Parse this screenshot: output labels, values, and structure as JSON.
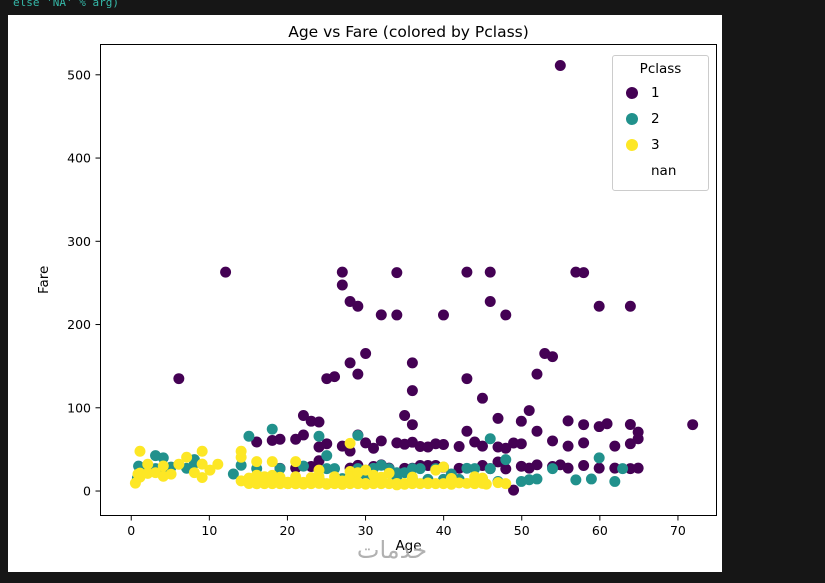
{
  "page": {
    "background": "#161616",
    "code_snippet": "else 'NA' % arg)",
    "watermark": "خدمات"
  },
  "chart_data": {
    "type": "scatter",
    "title": "Age vs Fare (colored by Pclass)",
    "xlabel": "Age",
    "ylabel": "Fare",
    "xlim": [
      -4,
      75
    ],
    "ylim": [
      -30,
      537
    ],
    "xticks": [
      0,
      10,
      20,
      30,
      40,
      50,
      60,
      70
    ],
    "yticks": [
      0,
      100,
      200,
      300,
      400,
      500
    ],
    "grid": false,
    "marker_diameter_px": 11,
    "legend": {
      "title": "Pclass",
      "position": "upper right",
      "entries": [
        {
          "label": "1",
          "color": "#440154"
        },
        {
          "label": "2",
          "color": "#21918c"
        },
        {
          "label": "3",
          "color": "#fde725"
        },
        {
          "label": "nan",
          "color": "none"
        }
      ]
    },
    "series": [
      {
        "name": "1",
        "pclass": 1,
        "color": "#440154",
        "points": [
          [
            55,
            512.3
          ],
          [
            12,
            263
          ],
          [
            27,
            263
          ],
          [
            34,
            262.4
          ],
          [
            43,
            263
          ],
          [
            46,
            263
          ],
          [
            57,
            263
          ],
          [
            58,
            262.4
          ],
          [
            27,
            247.5
          ],
          [
            28,
            227.5
          ],
          [
            29,
            221.8
          ],
          [
            32,
            211.5
          ],
          [
            34,
            211.3
          ],
          [
            40,
            211.3
          ],
          [
            46,
            227.5
          ],
          [
            48,
            211.3
          ],
          [
            60,
            221.8
          ],
          [
            64,
            221.8
          ],
          [
            6,
            134.5
          ],
          [
            25,
            134.5
          ],
          [
            26,
            136.8
          ],
          [
            28,
            153.5
          ],
          [
            29,
            140
          ],
          [
            30,
            164.9
          ],
          [
            36,
            153.5
          ],
          [
            43,
            134.5
          ],
          [
            52,
            140
          ],
          [
            53,
            164.9
          ],
          [
            54,
            161
          ],
          [
            36,
            120
          ],
          [
            45,
            110.9
          ],
          [
            22,
            90
          ],
          [
            23,
            83.2
          ],
          [
            24,
            82.2
          ],
          [
            35,
            90
          ],
          [
            36,
            78.9
          ],
          [
            43,
            71
          ],
          [
            47,
            86.5
          ],
          [
            50,
            83.2
          ],
          [
            51,
            96
          ],
          [
            52,
            71
          ],
          [
            56,
            83.5
          ],
          [
            58,
            78.9
          ],
          [
            60,
            76.7
          ],
          [
            61,
            80
          ],
          [
            64,
            79.2
          ],
          [
            65,
            70
          ],
          [
            72,
            78.9
          ],
          [
            16,
            58
          ],
          [
            18,
            60
          ],
          [
            19,
            61.4
          ],
          [
            21,
            61.4
          ],
          [
            22,
            66.6
          ],
          [
            24,
            52
          ],
          [
            25,
            55.9
          ],
          [
            27,
            53.1
          ],
          [
            28,
            47.1
          ],
          [
            29,
            66.6
          ],
          [
            30,
            57
          ],
          [
            31,
            50.5
          ],
          [
            32,
            59.4
          ],
          [
            34,
            57
          ],
          [
            35,
            55.4
          ],
          [
            36,
            57.8
          ],
          [
            37,
            52.6
          ],
          [
            38,
            52
          ],
          [
            39,
            55.9
          ],
          [
            40,
            55
          ],
          [
            42,
            52.6
          ],
          [
            44,
            58
          ],
          [
            45,
            53.1
          ],
          [
            47,
            52
          ],
          [
            48,
            50.5
          ],
          [
            49,
            56.9
          ],
          [
            50,
            55.9
          ],
          [
            54,
            59.4
          ],
          [
            56,
            53.1
          ],
          [
            58,
            57
          ],
          [
            62,
            53.1
          ],
          [
            64,
            56
          ],
          [
            65,
            62
          ],
          [
            19,
            26.3
          ],
          [
            21,
            26.6
          ],
          [
            23,
            28.5
          ],
          [
            24,
            35.5
          ],
          [
            28,
            26.6
          ],
          [
            29,
            30
          ],
          [
            31,
            28.5
          ],
          [
            32,
            30.5
          ],
          [
            33,
            26.6
          ],
          [
            35,
            26.3
          ],
          [
            36,
            26.4
          ],
          [
            37,
            29.7
          ],
          [
            38,
            29.7
          ],
          [
            39,
            29.7
          ],
          [
            40,
            27.7
          ],
          [
            42,
            26.3
          ],
          [
            45,
            29.7
          ],
          [
            46,
            26
          ],
          [
            47,
            34
          ],
          [
            48,
            25.6
          ],
          [
            49,
            0
          ],
          [
            50,
            28.7
          ],
          [
            51,
            26.6
          ],
          [
            52,
            30.5
          ],
          [
            54,
            28.5
          ],
          [
            55,
            30.5
          ],
          [
            56,
            26.6
          ],
          [
            58,
            29.7
          ],
          [
            60,
            26.6
          ],
          [
            62,
            26.6
          ],
          [
            64,
            26
          ],
          [
            65,
            26.6
          ]
        ]
      },
      {
        "name": "2",
        "pclass": 2,
        "color": "#21918c",
        "points": [
          [
            0.67,
            14.5
          ],
          [
            0.83,
            29
          ],
          [
            1,
            26
          ],
          [
            2,
            26
          ],
          [
            3,
            26
          ],
          [
            3,
            41.6
          ],
          [
            4,
            23
          ],
          [
            4,
            39
          ],
          [
            5,
            27.8
          ],
          [
            7,
            26.3
          ],
          [
            8,
            32.5
          ],
          [
            8,
            36.8
          ],
          [
            13,
            19.5
          ],
          [
            14,
            30.1
          ],
          [
            15,
            65
          ],
          [
            16,
            26
          ],
          [
            17,
            10.5
          ],
          [
            18,
            73.5
          ],
          [
            18,
            13
          ],
          [
            19,
            10.5
          ],
          [
            19,
            26
          ],
          [
            21,
            11.5
          ],
          [
            22,
            29
          ],
          [
            23,
            13
          ],
          [
            24,
            13
          ],
          [
            24,
            65
          ],
          [
            25,
            26
          ],
          [
            25,
            41.6
          ],
          [
            26,
            26
          ],
          [
            27,
            13.9
          ],
          [
            28,
            13
          ],
          [
            29,
            26
          ],
          [
            29,
            66
          ],
          [
            30,
            13
          ],
          [
            30,
            24
          ],
          [
            31,
            26.3
          ],
          [
            32,
            30.1
          ],
          [
            32,
            13
          ],
          [
            33,
            26
          ],
          [
            34,
            13
          ],
          [
            34,
            21
          ],
          [
            35,
            21
          ],
          [
            36,
            13
          ],
          [
            36,
            26
          ],
          [
            37,
            26
          ],
          [
            38,
            13
          ],
          [
            39,
            26
          ],
          [
            40,
            13
          ],
          [
            41,
            19.5
          ],
          [
            42,
            13
          ],
          [
            43,
            26.3
          ],
          [
            44,
            26
          ],
          [
            45,
            13.5
          ],
          [
            46,
            26
          ],
          [
            46,
            62
          ],
          [
            47,
            10.5
          ],
          [
            48,
            36.8
          ],
          [
            50,
            10.5
          ],
          [
            51,
            12.5
          ],
          [
            52,
            13.5
          ],
          [
            54,
            26
          ],
          [
            57,
            12.4
          ],
          [
            59,
            13.5
          ],
          [
            60,
            39
          ],
          [
            62,
            10.5
          ],
          [
            63,
            26
          ]
        ]
      },
      {
        "name": "3",
        "pclass": 3,
        "color": "#fde725",
        "points": [
          [
            0.42,
            8.5
          ],
          [
            0.75,
            19.3
          ],
          [
            1,
            15.7
          ],
          [
            1,
            20.6
          ],
          [
            1,
            46.9
          ],
          [
            2,
            20.2
          ],
          [
            2,
            31.3
          ],
          [
            3,
            21.1
          ],
          [
            4,
            16.7
          ],
          [
            4,
            29.1
          ],
          [
            5,
            19.3
          ],
          [
            6,
            31.3
          ],
          [
            7,
            39.7
          ],
          [
            8,
            21.1
          ],
          [
            9,
            31.4
          ],
          [
            9,
            15.2
          ],
          [
            9,
            46.9
          ],
          [
            10,
            24.2
          ],
          [
            11,
            31.3
          ],
          [
            14,
            39.7
          ],
          [
            14,
            46.9
          ],
          [
            14,
            11.2
          ],
          [
            15,
            14.5
          ],
          [
            15,
            8
          ],
          [
            16,
            18
          ],
          [
            16,
            34.4
          ],
          [
            16,
            7.7
          ],
          [
            17,
            7.9
          ],
          [
            17,
            16.1
          ],
          [
            18,
            7.8
          ],
          [
            18,
            17.8
          ],
          [
            18,
            34.4
          ],
          [
            19,
            7.9
          ],
          [
            19,
            8.1
          ],
          [
            19,
            15.5
          ],
          [
            20,
            7.9
          ],
          [
            20,
            9.5
          ],
          [
            20,
            7.9
          ],
          [
            21,
            7.7
          ],
          [
            21,
            16.1
          ],
          [
            21,
            34.4
          ],
          [
            22,
            7.3
          ],
          [
            22,
            9.4
          ],
          [
            22,
            7.8
          ],
          [
            23,
            7.9
          ],
          [
            23,
            15.1
          ],
          [
            24,
            16.1
          ],
          [
            24,
            8.1
          ],
          [
            24,
            24.2
          ],
          [
            25,
            7.8
          ],
          [
            25,
            7.1
          ],
          [
            26,
            7.9
          ],
          [
            26,
            16.1
          ],
          [
            26,
            8.7
          ],
          [
            27,
            11.1
          ],
          [
            27,
            7
          ],
          [
            28,
            7.9
          ],
          [
            28,
            22.5
          ],
          [
            28,
            56.5
          ],
          [
            28,
            15.9
          ],
          [
            29,
            21.1
          ],
          [
            29,
            7.9
          ],
          [
            29,
            9.5
          ],
          [
            30,
            8.1
          ],
          [
            30,
            24.2
          ],
          [
            30,
            7.2
          ],
          [
            31,
            18
          ],
          [
            31,
            7.8
          ],
          [
            32,
            7.9
          ],
          [
            32,
            15.5
          ],
          [
            33,
            7.9
          ],
          [
            33,
            20.5
          ],
          [
            34,
            6.4
          ],
          [
            34,
            8.1
          ],
          [
            35,
            7.1
          ],
          [
            35,
            8.1
          ],
          [
            36,
            15.6
          ],
          [
            36,
            7.9
          ],
          [
            37,
            7.9
          ],
          [
            38,
            7.9
          ],
          [
            38,
            8.7
          ],
          [
            39,
            24.2
          ],
          [
            39,
            7.9
          ],
          [
            40,
            7.9
          ],
          [
            40,
            27.9
          ],
          [
            41,
            14.1
          ],
          [
            41,
            7.1
          ],
          [
            42,
            8.7
          ],
          [
            43,
            8.1
          ],
          [
            44,
            16.1
          ],
          [
            44,
            7.9
          ],
          [
            45,
            14.5
          ],
          [
            45,
            8.1
          ],
          [
            45.5,
            7.2
          ],
          [
            47,
            9
          ],
          [
            48,
            7.9
          ]
        ]
      }
    ]
  }
}
